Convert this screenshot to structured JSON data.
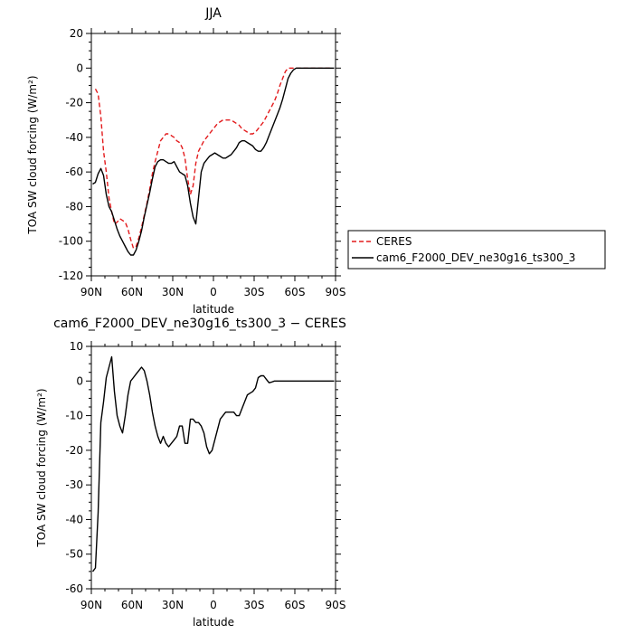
{
  "chart_data": [
    {
      "type": "line",
      "title": "JJA",
      "xlabel": "latitude",
      "ylabel": "TOA SW cloud forcing (W/m²)",
      "xlim": [
        90,
        -90
      ],
      "ylim": [
        -120,
        20
      ],
      "xticks": [
        90,
        60,
        30,
        0,
        -30,
        -60,
        -90
      ],
      "xtick_labels": [
        "90N",
        "60N",
        "30N",
        "0",
        "30S",
        "60S",
        "90S"
      ],
      "yticks": [
        -120,
        -100,
        -80,
        -60,
        -40,
        -20,
        0,
        20
      ],
      "ytick_labels": [
        "-120",
        "-100",
        "-80",
        "-60",
        "-40",
        "-20",
        "0",
        "20"
      ],
      "legend": "right",
      "series": [
        {
          "name": "CERES",
          "color": "#e31a1c",
          "dash": true,
          "x": [
            87,
            85,
            83,
            81,
            79,
            77,
            75,
            73,
            71,
            69,
            67,
            65,
            63,
            61,
            59,
            57,
            55,
            53,
            51,
            49,
            47,
            45,
            43,
            41,
            39,
            37,
            35,
            33,
            31,
            29,
            27,
            25,
            23,
            21,
            19,
            17,
            15,
            13,
            11,
            9,
            7,
            5,
            3,
            1,
            -1,
            -3,
            -5,
            -7,
            -9,
            -11,
            -13,
            -15,
            -17,
            -19,
            -21,
            -23,
            -25,
            -27,
            -29,
            -31,
            -33,
            -35,
            -37,
            -39,
            -41,
            -43,
            -45,
            -47,
            -49,
            -51,
            -53,
            -55,
            -57,
            -59,
            -61,
            -63,
            -65,
            -67,
            -69,
            -71,
            -73,
            -75,
            -77,
            -79,
            -81,
            -83,
            -85,
            -87
          ],
          "y": [
            -12,
            -15,
            -28,
            -48,
            -60,
            -75,
            -83,
            -90,
            -89,
            -87,
            -88,
            -89,
            -93,
            -99,
            -104,
            -103,
            -98,
            -92,
            -85,
            -78,
            -70,
            -61,
            -54,
            -48,
            -42,
            -40,
            -38,
            -38,
            -39,
            -40,
            -42,
            -43,
            -46,
            -52,
            -64,
            -73,
            -68,
            -55,
            -48,
            -45,
            -42,
            -40,
            -38,
            -36,
            -34,
            -32,
            -31,
            -30,
            -30,
            -30,
            -30,
            -31,
            -32,
            -33,
            -35,
            -36,
            -37,
            -38,
            -38,
            -37,
            -35,
            -33,
            -31,
            -28,
            -25,
            -22,
            -19,
            -15,
            -10,
            -6,
            -2,
            0,
            0,
            0,
            0,
            0,
            0,
            0,
            0,
            0,
            0,
            0,
            0,
            0,
            0,
            0,
            0,
            0
          ]
        },
        {
          "name": "cam6_F2000_DEV_ne30g16_ts300_3",
          "color": "#000000",
          "dash": false,
          "x": [
            89,
            87,
            85,
            83,
            81,
            79,
            77,
            75,
            73,
            71,
            69,
            67,
            65,
            63,
            61,
            59,
            57,
            55,
            53,
            51,
            49,
            47,
            45,
            43,
            41,
            39,
            37,
            35,
            33,
            31,
            29,
            27,
            25,
            23,
            21,
            19,
            17,
            15,
            13,
            11,
            9,
            7,
            5,
            3,
            1,
            -1,
            -3,
            -5,
            -7,
            -9,
            -11,
            -13,
            -15,
            -17,
            -19,
            -21,
            -23,
            -25,
            -27,
            -29,
            -31,
            -33,
            -35,
            -37,
            -39,
            -41,
            -43,
            -45,
            -47,
            -49,
            -51,
            -53,
            -55,
            -57,
            -59,
            -61,
            -63,
            -65,
            -67,
            -69,
            -71,
            -73,
            -75,
            -77,
            -79,
            -81,
            -83,
            -85,
            -87,
            -89
          ],
          "y": [
            -67,
            -66,
            -61,
            -58,
            -62,
            -73,
            -80,
            -83,
            -88,
            -93,
            -97,
            -100,
            -103,
            -106,
            -108,
            -108,
            -105,
            -100,
            -94,
            -86,
            -79,
            -72,
            -64,
            -57,
            -54,
            -53,
            -53,
            -54,
            -55,
            -55,
            -54,
            -57,
            -60,
            -61,
            -62,
            -68,
            -78,
            -86,
            -90,
            -75,
            -60,
            -55,
            -53,
            -51,
            -50,
            -49,
            -50,
            -51,
            -52,
            -52,
            -51,
            -50,
            -48,
            -46,
            -43,
            -42,
            -42,
            -43,
            -44,
            -45,
            -47,
            -48,
            -48,
            -46,
            -43,
            -39,
            -35,
            -31,
            -27,
            -23,
            -18,
            -12,
            -6,
            -3,
            -1,
            0,
            0,
            0,
            0,
            0,
            0,
            0,
            0,
            0,
            0,
            0,
            0,
            0,
            0,
            0
          ]
        }
      ]
    },
    {
      "type": "line",
      "title": "cam6_F2000_DEV_ne30g16_ts300_3 − CERES",
      "xlabel": "latitude",
      "ylabel": "TOA SW cloud forcing (W/m²)",
      "xlim": [
        90,
        -90
      ],
      "ylim": [
        -60,
        10
      ],
      "xticks": [
        90,
        60,
        30,
        0,
        -30,
        -60,
        -90
      ],
      "xtick_labels": [
        "90N",
        "60N",
        "30N",
        "0",
        "30S",
        "60S",
        "90S"
      ],
      "yticks": [
        -60,
        -50,
        -40,
        -30,
        -20,
        -10,
        0,
        10
      ],
      "ytick_labels": [
        "-60",
        "-50",
        "-40",
        "-30",
        "-20",
        "-10",
        "0",
        "10"
      ],
      "series": [
        {
          "color": "#000000",
          "dash": false,
          "x": [
            89,
            87,
            85,
            83,
            81,
            79,
            77,
            75,
            73,
            71,
            69,
            67,
            65,
            63,
            61,
            59,
            57,
            55,
            53,
            51,
            49,
            47,
            45,
            43,
            41,
            39,
            37,
            35,
            33,
            31,
            29,
            27,
            25,
            23,
            21,
            19,
            17,
            15,
            13,
            11,
            9,
            7,
            5,
            3,
            1,
            -1,
            -3,
            -5,
            -7,
            -9,
            -11,
            -13,
            -15,
            -17,
            -19,
            -21,
            -23,
            -25,
            -27,
            -29,
            -31,
            -33,
            -35,
            -37,
            -39,
            -41,
            -43,
            -45,
            -47,
            -49,
            -51,
            -53,
            -55,
            -57,
            -59,
            -61,
            -63,
            -65,
            -67,
            -69,
            -71,
            -73,
            -75,
            -77,
            -79,
            -81,
            -83,
            -85,
            -87,
            -89
          ],
          "y": [
            -55,
            -54,
            -38,
            -12,
            -6,
            1,
            4,
            7,
            -3,
            -10,
            -13,
            -15,
            -10,
            -4,
            0,
            1,
            2,
            3,
            4,
            3,
            0,
            -4,
            -9,
            -13,
            -16,
            -18,
            -16,
            -18,
            -19,
            -18,
            -17,
            -16,
            -13,
            -13,
            -18,
            -18,
            -11,
            -11,
            -12,
            -12,
            -13,
            -15,
            -19,
            -21,
            -20,
            -17,
            -14,
            -11,
            -10,
            -9,
            -9,
            -9,
            -9,
            -10,
            -10,
            -8,
            -6,
            -4,
            -3.5,
            -3,
            -2,
            1,
            1.5,
            1.5,
            0.5,
            -0.5,
            -0.3,
            0,
            0,
            0,
            0,
            0,
            0,
            0,
            0,
            0,
            0,
            0,
            0,
            0,
            0,
            0,
            0,
            0,
            0,
            0,
            0,
            0,
            0,
            0
          ]
        }
      ]
    }
  ]
}
